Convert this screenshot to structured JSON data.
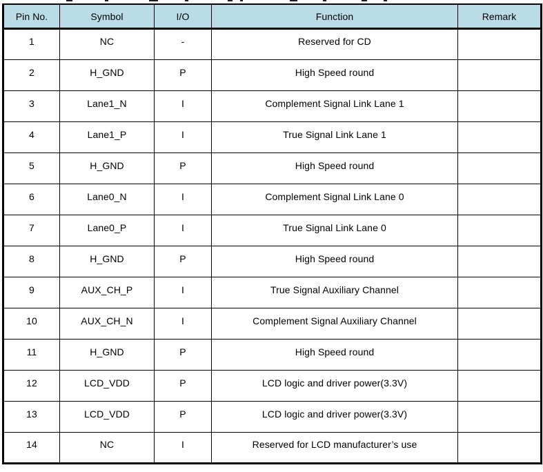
{
  "table": {
    "header_bg": "#b9dce6",
    "border_color": "#000000",
    "columns": [
      {
        "key": "pin",
        "label": "Pin No."
      },
      {
        "key": "symbol",
        "label": "Symbol"
      },
      {
        "key": "io",
        "label": "I/O"
      },
      {
        "key": "function",
        "label": "Function"
      },
      {
        "key": "remark",
        "label": "Remark"
      }
    ],
    "rows": [
      {
        "pin": "1",
        "symbol": "NC",
        "io": "-",
        "function": "Reserved for CD",
        "remark": ""
      },
      {
        "pin": "2",
        "symbol": "H_GND",
        "io": "P",
        "function": "High Speed round",
        "remark": ""
      },
      {
        "pin": "3",
        "symbol": "Lane1_N",
        "io": "I",
        "function": "Complement Signal Link Lane 1",
        "remark": ""
      },
      {
        "pin": "4",
        "symbol": "Lane1_P",
        "io": "I",
        "function": "True Signal Link Lane 1",
        "remark": ""
      },
      {
        "pin": "5",
        "symbol": "H_GND",
        "io": "P",
        "function": "High Speed round",
        "remark": ""
      },
      {
        "pin": "6",
        "symbol": "Lane0_N",
        "io": "I",
        "function": "Complement Signal Link Lane 0",
        "remark": ""
      },
      {
        "pin": "7",
        "symbol": "Lane0_P",
        "io": "I",
        "function": "True Signal Link Lane 0",
        "remark": ""
      },
      {
        "pin": "8",
        "symbol": "H_GND",
        "io": "P",
        "function": "High Speed round",
        "remark": ""
      },
      {
        "pin": "9",
        "symbol": "AUX_CH_P",
        "io": "I",
        "function": "True Signal Auxiliary Channel",
        "remark": ""
      },
      {
        "pin": "10",
        "symbol": "AUX_CH_N",
        "io": "I",
        "function": "Complement Signal Auxiliary Channel",
        "remark": ""
      },
      {
        "pin": "11",
        "symbol": "H_GND",
        "io": "P",
        "function": "High Speed round",
        "remark": ""
      },
      {
        "pin": "12",
        "symbol": "LCD_VDD",
        "io": "P",
        "function": "LCD logic and driver power(3.3V)",
        "remark": ""
      },
      {
        "pin": "13",
        "symbol": "LCD_VDD",
        "io": "P",
        "function": "LCD logic and driver power(3.3V)",
        "remark": ""
      },
      {
        "pin": "14",
        "symbol": "NC",
        "io": "I",
        "function": "Reserved for LCD manufacturer’s use",
        "remark": ""
      }
    ]
  }
}
